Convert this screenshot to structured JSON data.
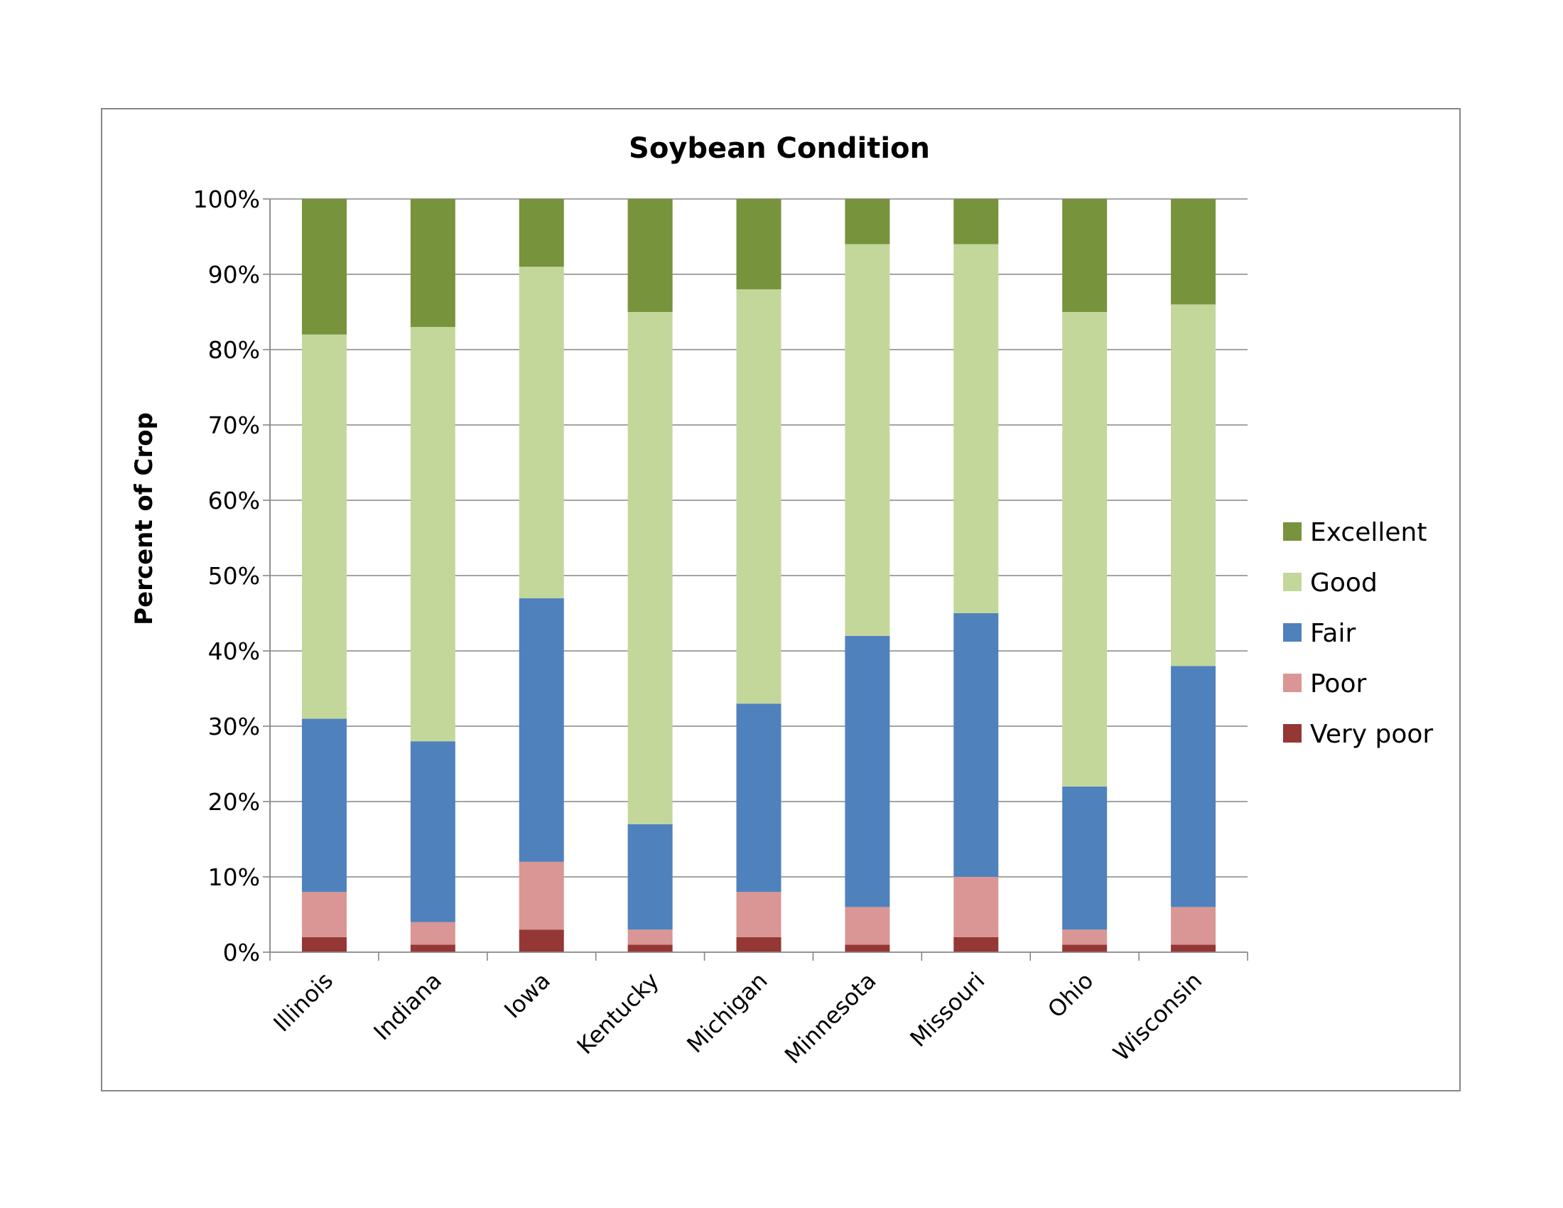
{
  "chart_data": {
    "type": "bar",
    "stacked": true,
    "percent_stacked": true,
    "title": "Soybean Condition",
    "xlabel": "",
    "ylabel": "Percent of Crop",
    "ylim": [
      0,
      100
    ],
    "yticks": [
      "0%",
      "10%",
      "20%",
      "30%",
      "40%",
      "50%",
      "60%",
      "70%",
      "80%",
      "90%",
      "100%"
    ],
    "categories": [
      "Illinois",
      "Indiana",
      "Iowa",
      "Kentucky",
      "Michigan",
      "Minnesota",
      "Missouri",
      "Ohio",
      "Wisconsin"
    ],
    "series": [
      {
        "name": "Very poor",
        "color": "#953735",
        "values": [
          2,
          1,
          3,
          1,
          2,
          1,
          2,
          1,
          1
        ]
      },
      {
        "name": "Poor",
        "color": "#d99694",
        "values": [
          6,
          3,
          9,
          2,
          6,
          5,
          8,
          2,
          5
        ]
      },
      {
        "name": "Fair",
        "color": "#4f81bd",
        "values": [
          23,
          24,
          35,
          14,
          25,
          36,
          35,
          19,
          32
        ]
      },
      {
        "name": "Good",
        "color": "#c4d79b",
        "values": [
          51,
          55,
          44,
          68,
          55,
          52,
          49,
          63,
          48
        ]
      },
      {
        "name": "Excellent",
        "color": "#77933c",
        "values": [
          18,
          17,
          9,
          15,
          12,
          6,
          6,
          15,
          14
        ]
      }
    ],
    "legend_order": [
      "Excellent",
      "Good",
      "Fair",
      "Poor",
      "Very poor"
    ],
    "legend_position": "right",
    "grid": true,
    "gridline_color": "#868686"
  }
}
